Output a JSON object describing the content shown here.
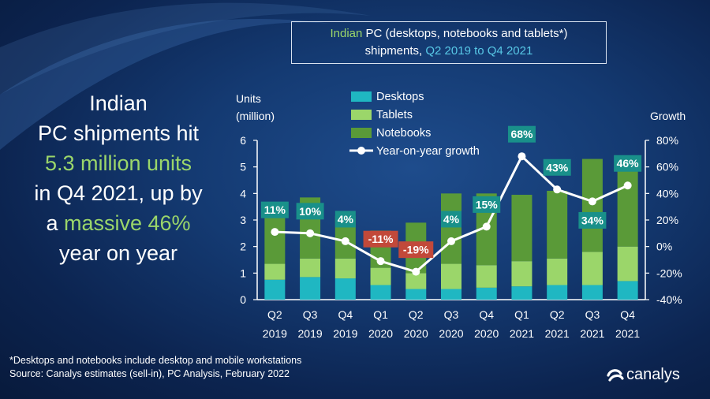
{
  "headline": {
    "line1": "Indian",
    "line2": "PC shipments hit",
    "highlight1": "5.3 million units",
    "line3": "in Q4 2021, up by",
    "line4_pre": "a ",
    "highlight2": "massive 46%",
    "line5": "year on year"
  },
  "title": {
    "part1": "Indian",
    "part2": " PC (desktops, notebooks and tablets*)",
    "part3": "shipments, ",
    "part4": "Q2 2019 to Q4 2021"
  },
  "footnote": {
    "line1": "*Desktops and notebooks include desktop and mobile workstations",
    "line2": "Source: Canalys estimates (sell-in), PC Analysis, February 2022"
  },
  "brand": "canalys",
  "colors": {
    "desktops": "#1fb7c2",
    "tablets": "#9bd66a",
    "notebooks": "#5a9a38",
    "growth_line": "#ffffff",
    "label_positive": "#19908a",
    "label_negative": "#c2493a",
    "accent_green": "#9bd66a",
    "accent_cyan": "#58c8e6"
  },
  "chart_data": {
    "type": "bar",
    "stacked": true,
    "title": "Indian PC (desktops, notebooks and tablets*) shipments, Q2 2019 to Q4 2021",
    "ylabel": "Units (million)",
    "y2label": "Growth",
    "ylim": [
      0,
      6
    ],
    "yticks": [
      "0",
      "1",
      "2",
      "3",
      "4",
      "5",
      "6"
    ],
    "y2lim": [
      -40,
      80
    ],
    "y2ticks": [
      "-40%",
      "-20%",
      "0%",
      "20%",
      "40%",
      "60%",
      "80%"
    ],
    "categories": [
      {
        "q": "Q2",
        "y": "2019"
      },
      {
        "q": "Q3",
        "y": "2019"
      },
      {
        "q": "Q4",
        "y": "2019"
      },
      {
        "q": "Q1",
        "y": "2020"
      },
      {
        "q": "Q2",
        "y": "2020"
      },
      {
        "q": "Q3",
        "y": "2020"
      },
      {
        "q": "Q4",
        "y": "2020"
      },
      {
        "q": "Q1",
        "y": "2021"
      },
      {
        "q": "Q2",
        "y": "2021"
      },
      {
        "q": "Q3",
        "y": "2021"
      },
      {
        "q": "Q4",
        "y": "2021"
      }
    ],
    "series": [
      {
        "name": "Desktops",
        "values": [
          0.75,
          0.85,
          0.8,
          0.55,
          0.4,
          0.4,
          0.45,
          0.5,
          0.55,
          0.55,
          0.7
        ]
      },
      {
        "name": "Tablets",
        "values": [
          0.6,
          0.7,
          0.75,
          0.65,
          0.6,
          0.95,
          0.85,
          0.95,
          1.0,
          1.25,
          1.3
        ]
      },
      {
        "name": "Notebooks",
        "values": [
          2.2,
          2.3,
          1.6,
          1.4,
          1.9,
          2.65,
          2.7,
          2.5,
          2.55,
          3.5,
          3.3
        ]
      }
    ],
    "growth": {
      "name": "Year-on-year growth",
      "values": [
        11,
        10,
        4,
        -11,
        -19,
        4,
        15,
        68,
        43,
        34,
        46
      ],
      "labels": [
        "11%",
        "10%",
        "4%",
        "-11%",
        "-19%",
        "4%",
        "15%",
        "68%",
        "43%",
        "34%",
        "46%"
      ]
    },
    "legend": {
      "position": "top-center",
      "items": [
        "Desktops",
        "Tablets",
        "Notebooks",
        "Year-on-year growth"
      ]
    },
    "grid": false
  }
}
